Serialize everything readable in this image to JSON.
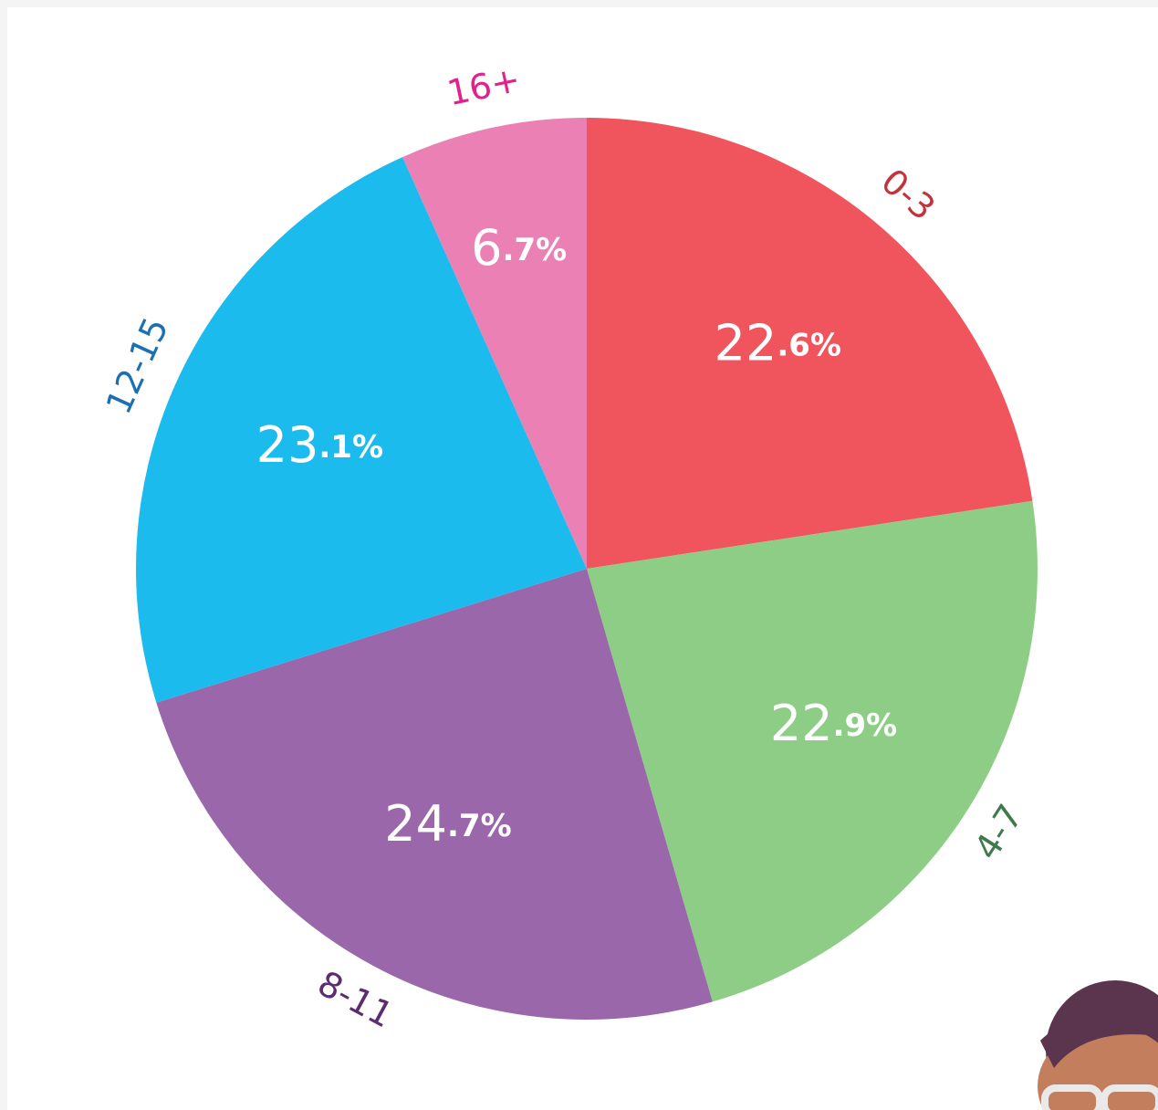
{
  "chart_data": {
    "type": "pie",
    "categories": [
      "0-3",
      "4-7",
      "8-11",
      "12-15",
      "16+"
    ],
    "values": [
      22.6,
      22.9,
      24.7,
      23.1,
      6.7
    ],
    "value_labels": [
      "22.6%",
      "22.9%",
      "24.7%",
      "23.1%",
      "6.7%"
    ],
    "colors": [
      "#f0555d",
      "#8dcd86",
      "#9a67ab",
      "#1cbbee",
      "#ea80b3"
    ],
    "label_colors": [
      "#c1343c",
      "#3f7a4c",
      "#5b2c72",
      "#1a70b3",
      "#e2218b"
    ],
    "start_angle": 0,
    "direction": "clockwise"
  }
}
